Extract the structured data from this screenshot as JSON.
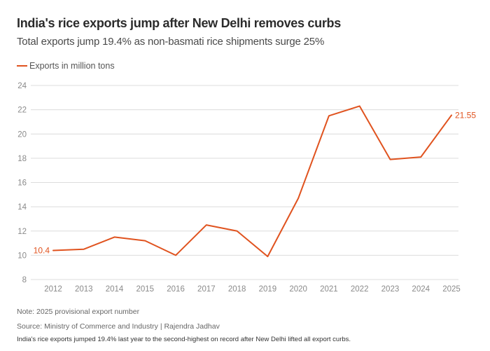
{
  "chart_data": {
    "type": "line",
    "title": "India's rice exports jump after New Delhi removes curbs",
    "subtitle": "Total exports jump 19.4% as non-basmati rice shipments surge 25%",
    "xlabel": "",
    "ylabel": "",
    "x": [
      "2012",
      "2013",
      "2014",
      "2015",
      "2016",
      "2017",
      "2018",
      "2019",
      "2020",
      "2021",
      "2022",
      "2023",
      "2024",
      "2025"
    ],
    "series": [
      {
        "name": "Exports in million tons",
        "color": "#e0531f",
        "values": [
          10.4,
          10.5,
          11.5,
          11.2,
          10.0,
          12.5,
          12.0,
          9.9,
          14.7,
          21.5,
          22.3,
          17.9,
          18.1,
          21.55
        ]
      }
    ],
    "ylim": [
      8,
      24
    ],
    "yticks": [
      8,
      10,
      12,
      14,
      16,
      18,
      20,
      22,
      24
    ],
    "grid": true,
    "legend_position": "top-left",
    "annotations": [
      {
        "x": "2012",
        "text": "10.4",
        "position": "left"
      },
      {
        "x": "2025",
        "text": "21.55",
        "position": "right"
      }
    ]
  },
  "notes": {
    "note": "Note: 2025 provisional export number",
    "source": "Source: Ministry of Commerce and Industry | Rajendra Jadhav",
    "caption": "India's rice exports jumped 19.4% last year to the second-highest on record after New Delhi lifted all export curbs."
  },
  "colors": {
    "accent": "#e0531f",
    "grid": "#dcdcdc",
    "axis_text": "#8a8a8a"
  }
}
